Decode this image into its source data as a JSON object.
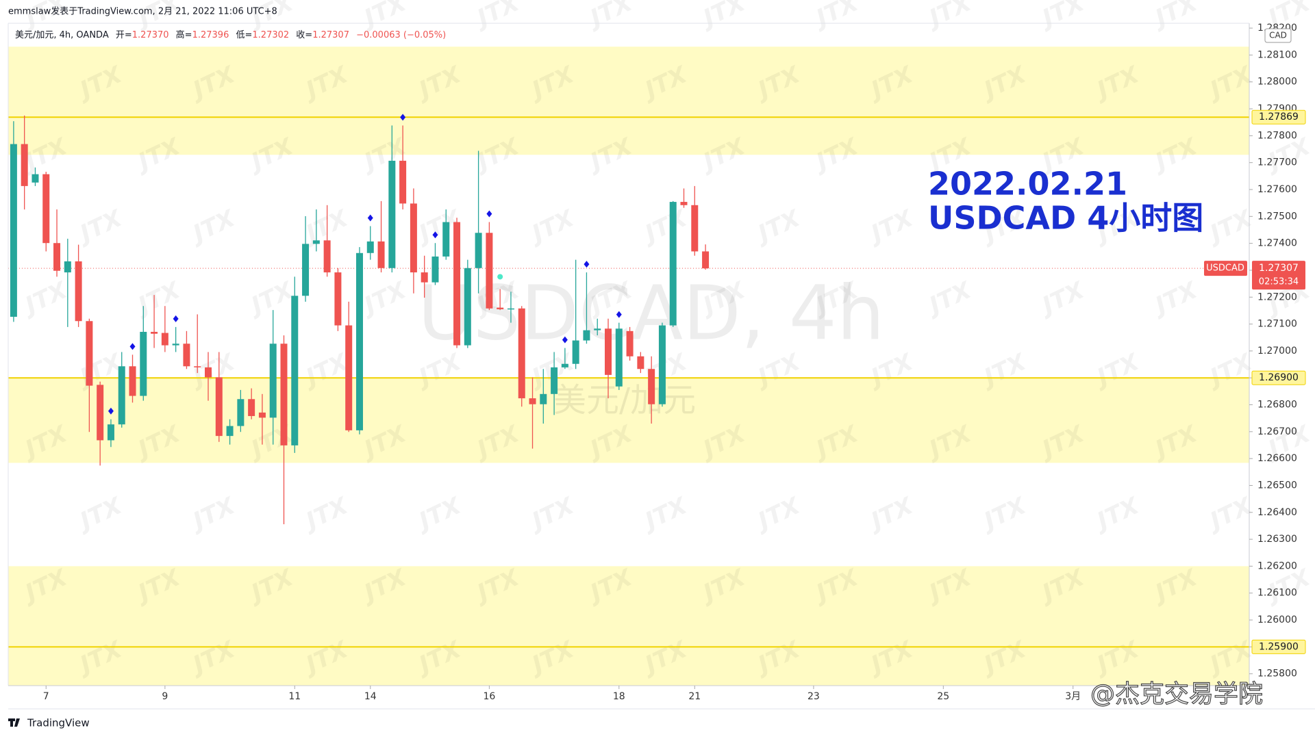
{
  "header": {
    "publisher": "emmslaw发表于TradingView.com, 2月 21, 2022 11:06 UTC+8"
  },
  "chart_data": {
    "type": "candlestick",
    "legend": {
      "symbol": "美元/加元, 4h, OANDA",
      "open_label": "开=",
      "open": "1.27370",
      "high_label": "高=",
      "high": "1.27396",
      "low_label": "低=",
      "low": "1.27302",
      "close_label": "收=",
      "close": "1.27307",
      "change": "−0.00063 (−0.05%)"
    },
    "x": [
      0,
      1,
      2,
      3,
      4,
      5,
      6,
      7,
      8,
      9,
      10,
      11,
      12,
      13,
      14,
      15,
      16,
      17,
      18,
      19,
      20,
      21,
      22,
      23,
      24,
      25,
      26,
      27,
      28,
      29,
      30,
      31,
      32,
      33,
      34,
      35,
      36,
      37,
      38,
      39,
      40,
      41,
      42,
      43,
      44,
      45,
      46,
      47,
      48,
      49,
      50,
      51,
      52,
      53,
      54,
      55,
      56,
      57,
      58,
      59,
      60,
      61,
      62,
      63,
      64
    ],
    "open": [
      1.27127,
      1.27769,
      1.27626,
      1.27657,
      1.27401,
      1.27292,
      1.27333,
      1.27111,
      1.26874,
      1.26668,
      1.26727,
      1.26943,
      1.26833,
      1.27071,
      1.27067,
      1.27021,
      1.27027,
      1.26943,
      1.26939,
      1.26902,
      1.26684,
      1.26721,
      1.26821,
      1.26771,
      1.26752,
      1.27027,
      1.26649,
      1.27205,
      1.27398,
      1.27411,
      1.27292,
      1.27095,
      1.26705,
      1.27364,
      1.27407,
      1.27308,
      1.27707,
      1.27548,
      1.27292,
      1.27255,
      1.27351,
      1.27479,
      1.27021,
      1.27308,
      1.27439,
      1.27161,
      1.27155,
      1.27158,
      1.26824,
      1.26802,
      1.2684,
      1.26939,
      1.26952,
      1.27039,
      1.27077,
      1.27083,
      1.26868,
      1.27074,
      1.2698,
      1.26933,
      1.26802,
      1.27095,
      1.27554,
      1.27542,
      1.2737
    ],
    "high": [
      1.27854,
      1.27875,
      1.27682,
      1.27666,
      1.27526,
      1.27417,
      1.27395,
      1.2712,
      1.26886,
      1.26746,
      1.26996,
      1.26986,
      1.27167,
      1.27208,
      1.27167,
      1.27089,
      1.27074,
      1.27136,
      1.26996,
      1.26996,
      1.26746,
      1.26855,
      1.26861,
      1.2684,
      1.27152,
      1.27058,
      1.27276,
      1.27501,
      1.27526,
      1.27542,
      1.27308,
      1.27183,
      1.27386,
      1.27464,
      1.27557,
      1.27838,
      1.27838,
      1.27604,
      1.27354,
      1.27401,
      1.27526,
      1.27495,
      1.27339,
      1.27744,
      1.27479,
      1.2723,
      1.2722,
      1.27167,
      1.26902,
      1.26933,
      1.26996,
      1.27011,
      1.27339,
      1.27292,
      1.2712,
      1.2712,
      1.27105,
      1.27089,
      1.26996,
      1.2698,
      1.27105,
      1.27557,
      1.27604,
      1.27613,
      1.27396
    ],
    "low": [
      1.27108,
      1.27526,
      1.27613,
      1.2737,
      1.27276,
      1.27089,
      1.27089,
      1.26699,
      1.26574,
      1.26643,
      1.26715,
      1.26808,
      1.26815,
      1.27011,
      1.26996,
      1.26996,
      1.26933,
      1.26918,
      1.26815,
      1.26662,
      1.26652,
      1.26699,
      1.26746,
      1.26652,
      1.26652,
      1.26356,
      1.26621,
      1.27183,
      1.2737,
      1.27276,
      1.27074,
      1.26699,
      1.2669,
      1.27339,
      1.27292,
      1.27292,
      1.27526,
      1.27214,
      1.27198,
      1.27245,
      1.27339,
      1.27011,
      1.27011,
      1.27214,
      1.27152,
      1.27152,
      1.27105,
      1.26793,
      1.26637,
      1.2673,
      1.26762,
      1.26933,
      1.26933,
      1.27027,
      1.27058,
      1.26824,
      1.26855,
      1.26964,
      1.26918,
      1.2673,
      1.26793,
      1.27089,
      1.27532,
      1.27354,
      1.27302
    ],
    "close": [
      1.27769,
      1.27613,
      1.27657,
      1.27401,
      1.27298,
      1.27333,
      1.27111,
      1.26871,
      1.26668,
      1.26727,
      1.26943,
      1.26833,
      1.27071,
      1.27064,
      1.27021,
      1.27027,
      1.26943,
      1.26939,
      1.26902,
      1.26684,
      1.26721,
      1.26821,
      1.26758,
      1.26752,
      1.27027,
      1.26649,
      1.27205,
      1.27398,
      1.27411,
      1.27292,
      1.27095,
      1.26705,
      1.27364,
      1.27407,
      1.27308,
      1.27707,
      1.27548,
      1.27292,
      1.27255,
      1.27351,
      1.27479,
      1.27021,
      1.27308,
      1.27439,
      1.27158,
      1.27155,
      1.27158,
      1.26824,
      1.26802,
      1.2684,
      1.26939,
      1.26952,
      1.27039,
      1.27077,
      1.27083,
      1.26911,
      1.27083,
      1.2698,
      1.26933,
      1.26802,
      1.27095,
      1.27554,
      1.27542,
      1.2737,
      1.27307
    ],
    "up_color": "#26a69a",
    "down_color": "#ef5350",
    "xlim": [
      -0.5,
      114.3
    ],
    "xticks": [
      {
        "value": 3,
        "label": "7"
      },
      {
        "value": 14,
        "label": "9"
      },
      {
        "value": 26,
        "label": "11"
      },
      {
        "value": 33,
        "label": "14"
      },
      {
        "value": 44,
        "label": "16"
      },
      {
        "value": 56,
        "label": "18"
      },
      {
        "value": 63,
        "label": "21"
      },
      {
        "value": 74,
        "label": "23"
      },
      {
        "value": 86,
        "label": "25"
      },
      {
        "value": 98,
        "label": "3月"
      }
    ],
    "ylim": [
      1.25756,
      1.28218
    ],
    "yticks": [
      {
        "value": 1.258,
        "label": "1.25800"
      },
      {
        "value": 1.259,
        "label": "1.25900"
      },
      {
        "value": 1.26,
        "label": "1.26000"
      },
      {
        "value": 1.261,
        "label": "1.26100"
      },
      {
        "value": 1.262,
        "label": "1.26200"
      },
      {
        "value": 1.263,
        "label": "1.26300"
      },
      {
        "value": 1.264,
        "label": "1.26400"
      },
      {
        "value": 1.265,
        "label": "1.26500"
      },
      {
        "value": 1.266,
        "label": "1.26600"
      },
      {
        "value": 1.267,
        "label": "1.26700"
      },
      {
        "value": 1.268,
        "label": "1.26800"
      },
      {
        "value": 1.269,
        "label": "1.26900"
      },
      {
        "value": 1.27,
        "label": "1.27000"
      },
      {
        "value": 1.271,
        "label": "1.27100"
      },
      {
        "value": 1.272,
        "label": "1.27200"
      },
      {
        "value": 1.273,
        "label": "1.27300"
      },
      {
        "value": 1.274,
        "label": "1.27400"
      },
      {
        "value": 1.275,
        "label": "1.27500"
      },
      {
        "value": 1.276,
        "label": "1.27600"
      },
      {
        "value": 1.277,
        "label": "1.27700"
      },
      {
        "value": 1.278,
        "label": "1.27800"
      },
      {
        "value": 1.279,
        "label": "1.27900"
      },
      {
        "value": 1.28,
        "label": "1.28000"
      },
      {
        "value": 1.281,
        "label": "1.28100"
      },
      {
        "value": 1.282,
        "label": "1.28200"
      }
    ],
    "currency": "CAD",
    "zones": [
      {
        "from": 1.27729,
        "to": 1.28131
      },
      {
        "from": 1.26584,
        "to": 1.269
      },
      {
        "from": 1.25756,
        "to": 1.262
      }
    ],
    "zone_color": "#fffbc4",
    "levels": [
      {
        "value": 1.27869,
        "label": "1.27869"
      },
      {
        "value": 1.269,
        "label": "1.26900"
      },
      {
        "value": 1.259,
        "label": "1.25900"
      }
    ],
    "level_color": "#f0d200",
    "last_price": {
      "symbol": "USDCAD",
      "value": 1.27307,
      "label": "1.27307",
      "countdown": "02:53:34"
    },
    "signals": [
      9,
      11,
      15,
      33,
      36,
      39,
      44,
      51,
      53,
      56
    ],
    "signal_color": "#1414e6",
    "alerts": [
      45
    ],
    "alert_color": "#4de8c8",
    "annotation": [
      "2022.02.21",
      "USDCAD 4小时图"
    ],
    "watermark": {
      "symbol": "USDCAD, 4h",
      "name": "美元/加元",
      "logo": "JTX"
    }
  },
  "footer": {
    "brand": "TradingView",
    "credit": "@杰克交易学院"
  }
}
